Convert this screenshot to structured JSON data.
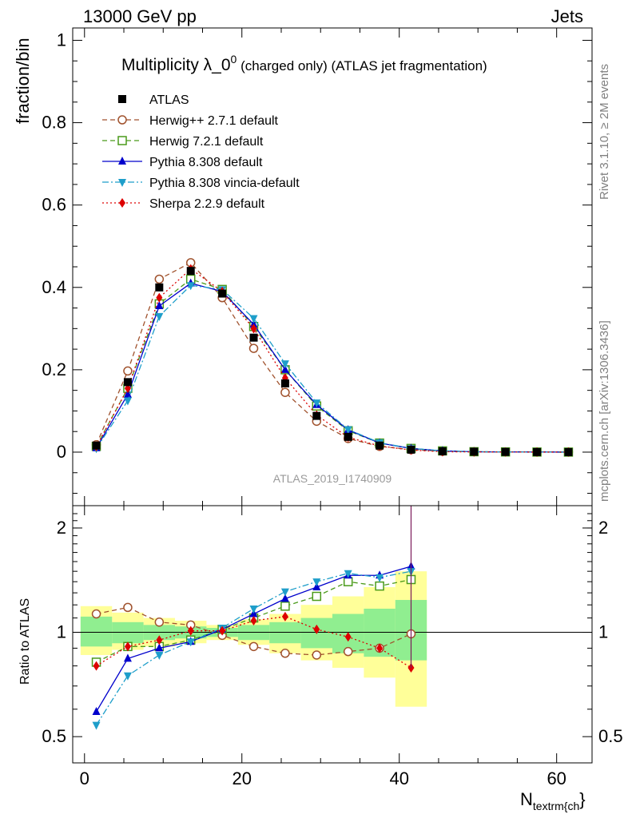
{
  "header": {
    "left": "13000 GeV pp",
    "right": "Jets"
  },
  "title": {
    "main": "Multiplicity λ_0",
    "sup": "0",
    "rest": " (charged only) (ATLAS jet fragmentation)"
  },
  "side_labels": {
    "rivet": "Rivet 3.1.10, ≥ 2M events",
    "mcplots": "mcplots.cern.ch [arXiv:1306.3436]"
  },
  "watermark": "ATLAS_2019_I1740909",
  "colors": {
    "band_inner": "#90ee90",
    "band_outer": "#ffff99"
  },
  "chart_data": {
    "type": "line",
    "ylabel_main": "fraction/bin",
    "ylabel_ratio": "Ratio to ATLAS",
    "xlabel_main": "N",
    "xlabel_sub": "textrm{ch",
    "xlabel_tail": "}",
    "xlim": [
      -1.5,
      64.5
    ],
    "ylim_main": [
      -0.13,
      1.03
    ],
    "ylim_ratio": [
      0.42,
      2.32
    ],
    "xticks": [
      0,
      20,
      40,
      60
    ],
    "yticks_main": [
      0,
      0.2,
      0.4,
      0.6,
      0.8,
      1
    ],
    "yticks_ratio": [
      0.5,
      1,
      2
    ],
    "yticks_ratio_right": [
      0.5,
      1,
      2
    ],
    "x": [
      1.5,
      5.5,
      9.5,
      13.5,
      17.5,
      21.5,
      25.5,
      29.5,
      33.5,
      37.5,
      41.5,
      45.5,
      49.5,
      53.5,
      57.5,
      61.5
    ],
    "bin_edges": [
      -0.5,
      3.5,
      7.5,
      11.5,
      15.5,
      19.5,
      23.5,
      27.5,
      31.5,
      35.5,
      39.5,
      43.5
    ],
    "band_inner_ratio": [
      [
        0.91,
        1.11
      ],
      [
        0.93,
        1.07
      ],
      [
        0.95,
        1.05
      ],
      [
        0.96,
        1.04
      ],
      [
        0.97,
        1.03
      ],
      [
        0.95,
        1.05
      ],
      [
        0.93,
        1.07
      ],
      [
        0.9,
        1.1
      ],
      [
        0.87,
        1.13
      ],
      [
        0.85,
        1.17
      ],
      [
        0.83,
        1.24
      ]
    ],
    "band_outer_ratio": [
      [
        0.86,
        1.19
      ],
      [
        0.89,
        1.14
      ],
      [
        0.91,
        1.1
      ],
      [
        0.93,
        1.08
      ],
      [
        0.95,
        1.05
      ],
      [
        0.92,
        1.09
      ],
      [
        0.87,
        1.13
      ],
      [
        0.83,
        1.2
      ],
      [
        0.79,
        1.27
      ],
      [
        0.74,
        1.35
      ],
      [
        0.61,
        1.5
      ]
    ],
    "legend_position": "top-left",
    "series": [
      {
        "name": "ATLAS",
        "color": "#000000",
        "marker": "square-filled",
        "dash": "none",
        "values": [
          0.016,
          0.17,
          0.4,
          0.44,
          0.385,
          0.278,
          0.167,
          0.088,
          0.037,
          0.016,
          0.006,
          0.002,
          0.001,
          0.0005,
          0.0002,
          0.0001
        ],
        "ratio": [
          1,
          1,
          1,
          1,
          1,
          1,
          1,
          1,
          1,
          1,
          1
        ]
      },
      {
        "name": "Herwig++ 2.7.1 default",
        "color": "#a0522d",
        "marker": "circle-open",
        "dash": "6,4",
        "values": [
          0.018,
          0.197,
          0.42,
          0.46,
          0.375,
          0.252,
          0.145,
          0.075,
          0.033,
          0.014,
          0.006,
          0.002,
          0.001,
          0.0005,
          0.0002,
          0.0001
        ],
        "ratio": [
          1.13,
          1.18,
          1.07,
          1.05,
          0.98,
          0.91,
          0.87,
          0.86,
          0.88,
          0.9,
          0.99
        ]
      },
      {
        "name": "Herwig 7.2.1 default",
        "color": "#4a9a1a",
        "marker": "square-open",
        "dash": "6,4",
        "values": [
          0.014,
          0.155,
          0.36,
          0.42,
          0.395,
          0.305,
          0.2,
          0.112,
          0.052,
          0.022,
          0.009,
          0.003,
          0.001,
          0.0005,
          0.0002,
          0.0001
        ],
        "ratio": [
          0.82,
          0.91,
          0.91,
          0.95,
          1.02,
          1.1,
          1.19,
          1.27,
          1.4,
          1.36,
          1.42
        ]
      },
      {
        "name": "Pythia 8.308 default",
        "color": "#0000cc",
        "marker": "triangle-up-filled",
        "dash": "none",
        "values": [
          0.01,
          0.14,
          0.355,
          0.41,
          0.39,
          0.31,
          0.2,
          0.115,
          0.054,
          0.022,
          0.009,
          0.003,
          0.001,
          0.0005,
          0.0002,
          0.0001
        ],
        "ratio": [
          0.59,
          0.84,
          0.9,
          0.94,
          1.02,
          1.13,
          1.25,
          1.35,
          1.46,
          1.46,
          1.55
        ]
      },
      {
        "name": "Pythia 8.308 vincia-default",
        "color": "#1e9eca",
        "marker": "triangle-down-filled",
        "dash": "8,3,2,3",
        "values": [
          0.009,
          0.125,
          0.33,
          0.405,
          0.395,
          0.325,
          0.215,
          0.12,
          0.055,
          0.023,
          0.009,
          0.003,
          0.001,
          0.0005,
          0.0002,
          0.0001
        ],
        "ratio": [
          0.54,
          0.75,
          0.86,
          0.94,
          1.03,
          1.17,
          1.31,
          1.4,
          1.48,
          1.44,
          1.5
        ]
      },
      {
        "name": "Sherpa 2.2.9 default",
        "color": "#dd0000",
        "marker": "diamond-filled",
        "dash": "2,3",
        "values": [
          0.013,
          0.155,
          0.375,
          0.445,
          0.39,
          0.3,
          0.18,
          0.09,
          0.036,
          0.015,
          0.005,
          0.001,
          0.0005,
          0.0002,
          0.0001,
          0.0001
        ],
        "ratio": [
          0.8,
          0.91,
          0.95,
          1.01,
          1.01,
          1.08,
          1.11,
          1.02,
          0.97,
          0.9,
          0.79
        ]
      }
    ]
  }
}
